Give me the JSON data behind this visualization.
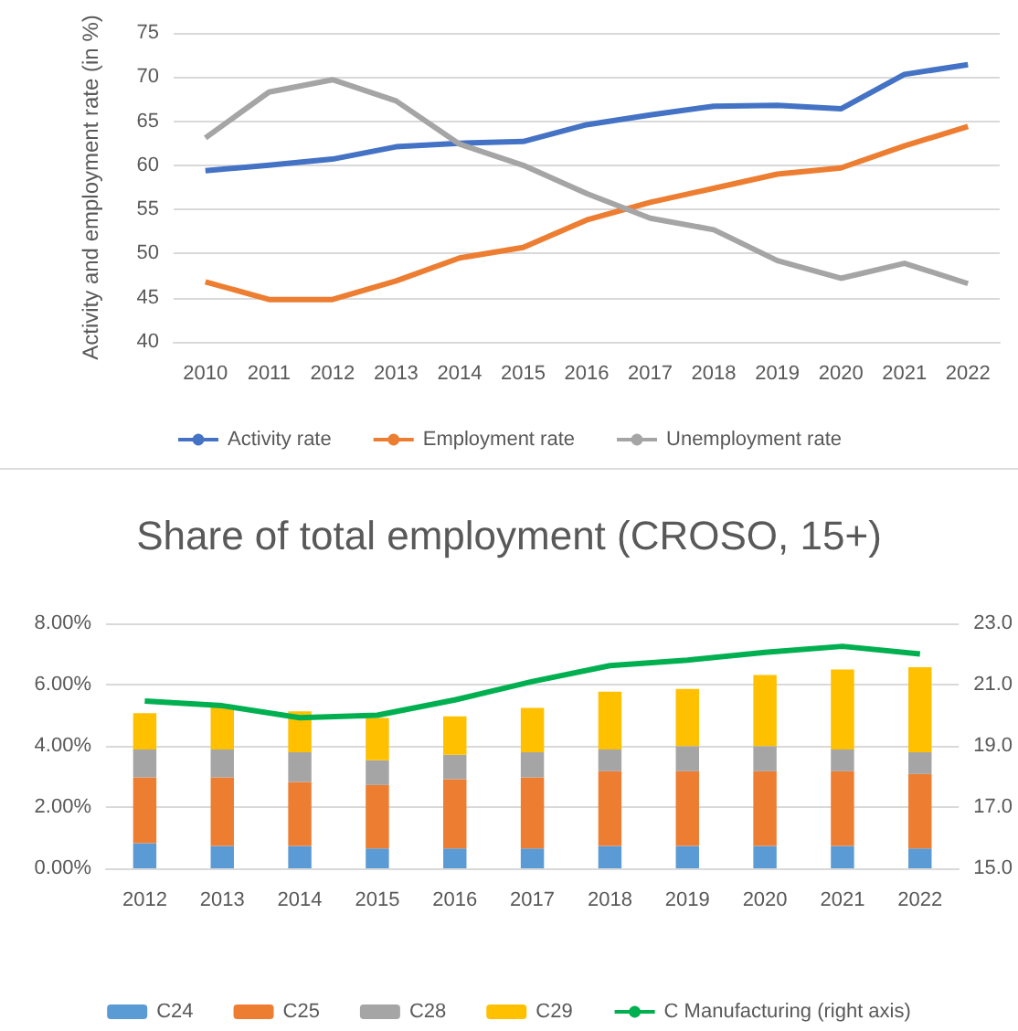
{
  "chart_data": [
    {
      "type": "line",
      "ylabel": "Activity and employment rate (in %)",
      "categories": [
        "2010",
        "2011",
        "2012",
        "2013",
        "2014",
        "2015",
        "2016",
        "2017",
        "2018",
        "2019",
        "2020",
        "2021",
        "2022"
      ],
      "ylim": [
        40,
        75
      ],
      "yticks": [
        40,
        45,
        50,
        55,
        60,
        65,
        70,
        75
      ],
      "grid": "y",
      "legend": "bottom",
      "series": [
        {
          "name": "Activity rate",
          "color": "#4472c4",
          "values": [
            59.4,
            60.0,
            60.7,
            62.1,
            62.5,
            62.7,
            64.6,
            65.7,
            66.7,
            66.8,
            66.4,
            70.3,
            71.4
          ]
        },
        {
          "name": "Employment rate",
          "color": "#ed7d31",
          "values": [
            46.8,
            44.8,
            44.8,
            46.9,
            49.5,
            50.7,
            53.8,
            55.8,
            57.4,
            59.0,
            59.7,
            62.2,
            64.4
          ]
        },
        {
          "name": "Unemployment rate",
          "color": "#a5a5a5",
          "values": [
            63.1,
            68.3,
            69.7,
            67.3,
            62.4,
            60.0,
            56.8,
            54.0,
            52.7,
            49.2,
            47.2,
            48.9,
            46.6
          ]
        }
      ]
    },
    {
      "type": "bar",
      "title": "Share of total employment (CROSO, 15+)",
      "categories": [
        "2012",
        "2013",
        "2014",
        "2015",
        "2016",
        "2017",
        "2018",
        "2019",
        "2020",
        "2021",
        "2022"
      ],
      "stacked": true,
      "grid": "y",
      "legend": "bottom",
      "ylim": [
        0,
        8
      ],
      "yticks": [
        {
          "value": 0,
          "label": "0.00%"
        },
        {
          "value": 2,
          "label": "2.00%"
        },
        {
          "value": 4,
          "label": "4.00%"
        },
        {
          "value": 6,
          "label": "6.00%"
        },
        {
          "value": 8,
          "label": "8.00%"
        }
      ],
      "y2lim": [
        15,
        23
      ],
      "y2ticks": [
        {
          "value": 15,
          "label": "15.0"
        },
        {
          "value": 17,
          "label": "17.0"
        },
        {
          "value": 19,
          "label": "19.0"
        },
        {
          "value": 21,
          "label": "21.0"
        },
        {
          "value": 23,
          "label": "23.0"
        }
      ],
      "series": [
        {
          "name": "C24",
          "color": "#5b9bd5",
          "values": [
            0.82,
            0.73,
            0.73,
            0.65,
            0.65,
            0.65,
            0.73,
            0.73,
            0.73,
            0.73,
            0.65
          ]
        },
        {
          "name": "C25",
          "color": "#ed7d31",
          "values": [
            2.15,
            2.24,
            2.09,
            2.07,
            2.26,
            2.32,
            2.44,
            2.44,
            2.44,
            2.44,
            2.43
          ]
        },
        {
          "name": "C28",
          "color": "#a5a5a5",
          "values": [
            0.91,
            0.91,
            0.97,
            0.81,
            0.8,
            0.82,
            0.71,
            0.82,
            0.82,
            0.71,
            0.71
          ]
        },
        {
          "name": "C29",
          "color": "#ffc000",
          "values": [
            1.19,
            1.42,
            1.34,
            1.38,
            1.25,
            1.45,
            1.89,
            1.87,
            2.32,
            2.61,
            2.78
          ]
        },
        {
          "name": "C Manufacturing (right axis)",
          "type": "line",
          "axis": "y2",
          "color": "#00b050",
          "values": [
            20.46,
            20.31,
            19.92,
            20.0,
            20.5,
            21.1,
            21.62,
            21.8,
            22.05,
            22.25,
            22.0
          ]
        }
      ]
    }
  ]
}
